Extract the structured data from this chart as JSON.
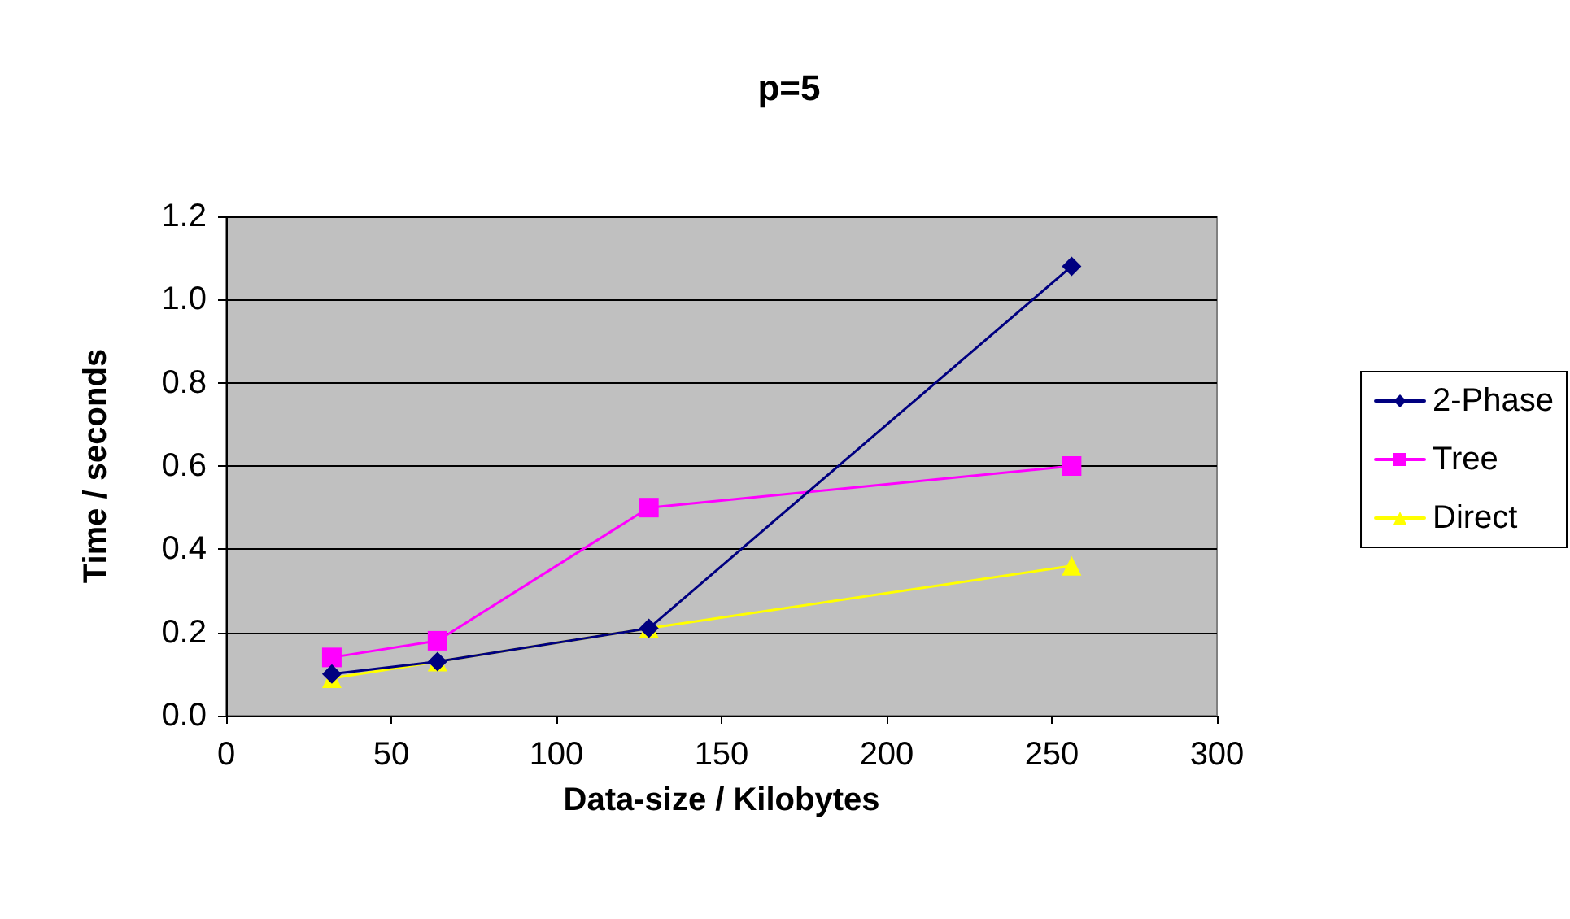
{
  "chart_data": {
    "type": "line",
    "title": "p=5",
    "xlabel": "Data-size / Kilobytes",
    "ylabel": "Time / seconds",
    "x": [
      32,
      64,
      128,
      256
    ],
    "series": [
      {
        "name": "2-Phase",
        "color": "#000080",
        "marker": "diamond",
        "values": [
          0.1,
          0.13,
          0.21,
          1.08
        ]
      },
      {
        "name": "Tree",
        "color": "#ff00ff",
        "marker": "square",
        "values": [
          0.14,
          0.18,
          0.5,
          0.6
        ]
      },
      {
        "name": "Direct",
        "color": "#ffff00",
        "marker": "triangle",
        "values": [
          0.09,
          0.13,
          0.21,
          0.36
        ]
      }
    ],
    "xlim": [
      0,
      300
    ],
    "xticks": [
      0,
      50,
      100,
      150,
      200,
      250,
      300
    ],
    "ylim": [
      0,
      1.2
    ],
    "yticks": [
      {
        "value": 0,
        "label": "0.0"
      },
      {
        "value": 0.2,
        "label": "0.2"
      },
      {
        "value": 0.4,
        "label": "0.4"
      },
      {
        "value": 0.6,
        "label": "0.6"
      },
      {
        "value": 0.8,
        "label": "0.8"
      },
      {
        "value": 1,
        "label": "1.0"
      },
      {
        "value": 1.2,
        "label": "1.2"
      }
    ],
    "grid": "y",
    "legend": "right",
    "line_style": "solid"
  }
}
